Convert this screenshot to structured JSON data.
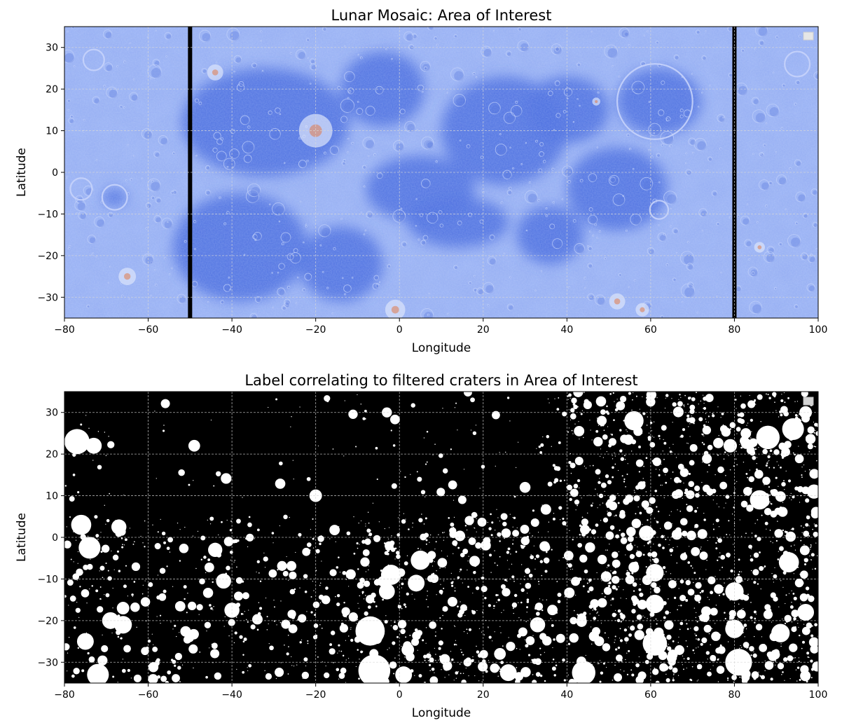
{
  "colors": {
    "mosaic_mare": "#4a6ee0",
    "mosaic_highland": "#93acf2",
    "mosaic_bg": "#6d8cea",
    "stripe": "#000000",
    "grid": "#d8d8d8",
    "label_bg": "#000000",
    "crater": "#ffffff",
    "accent_orange": "#e07a4a"
  },
  "chart_data": [
    {
      "type": "heatmap",
      "title": "Lunar Mosaic: Area of Interest",
      "xlabel": "Longitude",
      "ylabel": "Latitude",
      "xlim": [
        -80,
        100
      ],
      "ylim": [
        -35,
        35
      ],
      "xticks": [
        -80,
        -60,
        -40,
        -20,
        0,
        20,
        40,
        60,
        80,
        100
      ],
      "xtick_labels": [
        "−80",
        "−60",
        "−40",
        "−20",
        "0",
        "20",
        "40",
        "60",
        "80",
        "100"
      ],
      "yticks": [
        30,
        20,
        10,
        0,
        -10,
        -20,
        -30
      ],
      "ytick_labels": [
        "30",
        "20",
        "10",
        "0",
        "−10",
        "−20",
        "−30"
      ],
      "grid": true,
      "legend": "top-right (empty)",
      "colormap": "coolwarm",
      "seam_longitudes": [
        -50,
        80
      ],
      "mare_regions": [
        {
          "lon": -32,
          "lat": 12,
          "r_lon": 20,
          "r_lat": 13
        },
        {
          "lon": -38,
          "lat": -18,
          "r_lon": 16,
          "r_lat": 13
        },
        {
          "lon": -14,
          "lat": -22,
          "r_lon": 10,
          "r_lat": 9
        },
        {
          "lon": -4,
          "lat": 20,
          "r_lon": 10,
          "r_lat": 9
        },
        {
          "lon": 5,
          "lat": -4,
          "r_lon": 13,
          "r_lat": 8
        },
        {
          "lon": 25,
          "lat": 10,
          "r_lon": 15,
          "r_lat": 13
        },
        {
          "lon": 40,
          "lat": 15,
          "r_lon": 10,
          "r_lat": 8
        },
        {
          "lon": 52,
          "lat": -4,
          "r_lon": 12,
          "r_lat": 10
        },
        {
          "lon": 62,
          "lat": 17,
          "r_lon": 10,
          "r_lat": 8
        },
        {
          "lon": 36,
          "lat": -15,
          "r_lon": 8,
          "r_lat": 7
        },
        {
          "lon": 14,
          "lat": -12,
          "r_lon": 12,
          "r_lat": 6
        },
        {
          "lon": -68,
          "lat": -6,
          "r_lon": 3,
          "r_lat": 2
        }
      ]
    },
    {
      "type": "heatmap",
      "title": "Label correlating to filtered craters in Area of Interest",
      "xlabel": "Longitude",
      "ylabel": "Latitude",
      "xlim": [
        -80,
        100
      ],
      "ylim": [
        -35,
        35
      ],
      "xticks": [
        -80,
        -60,
        -40,
        -20,
        0,
        20,
        40,
        60,
        80,
        100
      ],
      "xtick_labels": [
        "−80",
        "−60",
        "−40",
        "−20",
        "0",
        "20",
        "40",
        "60",
        "80",
        "100"
      ],
      "yticks": [
        30,
        20,
        10,
        0,
        -10,
        -20,
        -30
      ],
      "ytick_labels": [
        "30",
        "20",
        "10",
        "0",
        "−10",
        "−20",
        "−30"
      ],
      "grid": true,
      "legend": "top-right (empty)",
      "values": "binary crater mask (white = crater)",
      "large_craters": [
        [
          -77,
          23,
          3.0
        ],
        [
          -73,
          22,
          1.9
        ],
        [
          -76,
          3,
          2.4
        ],
        [
          -74,
          -2.5,
          2.6
        ],
        [
          -67,
          2.5,
          1.8
        ],
        [
          -75,
          -25,
          2.0
        ],
        [
          -72,
          -33,
          2.6
        ],
        [
          -69,
          -20,
          2.0
        ],
        [
          -66,
          -21,
          2.1
        ],
        [
          -66,
          -17,
          1.5
        ],
        [
          -49,
          22,
          1.4
        ],
        [
          -44,
          -3,
          1.7
        ],
        [
          -42,
          -10.5,
          1.8
        ],
        [
          -40,
          -17.5,
          1.8
        ],
        [
          -20,
          10,
          1.5
        ],
        [
          -3,
          30,
          1.2
        ],
        [
          -7,
          -22.5,
          3.5
        ],
        [
          -6,
          -32,
          3.8
        ],
        [
          -2,
          -9,
          2.4
        ],
        [
          -3,
          -13,
          1.9
        ],
        [
          5,
          -5.5,
          2.3
        ],
        [
          4,
          -11,
          2.0
        ],
        [
          2,
          -27,
          1.5
        ],
        [
          1,
          -33,
          2.0
        ],
        [
          15,
          9,
          1.0
        ],
        [
          30,
          12,
          1.3
        ],
        [
          33,
          -21,
          1.8
        ],
        [
          24,
          -28,
          1.4
        ],
        [
          26,
          -32.5,
          2.0
        ],
        [
          44,
          -32.5,
          2.8
        ],
        [
          56,
          28,
          2.3
        ],
        [
          59,
          1,
          1.8
        ],
        [
          61,
          -8.5,
          2.1
        ],
        [
          61,
          -16,
          2.2
        ],
        [
          61,
          -25.5,
          2.9
        ],
        [
          79,
          22,
          1.6
        ],
        [
          86,
          9,
          2.3
        ],
        [
          88,
          24,
          2.8
        ],
        [
          94,
          26,
          2.6
        ],
        [
          80,
          -13,
          2.2
        ],
        [
          80,
          -22,
          2.2
        ],
        [
          81,
          -30,
          3.2
        ],
        [
          93,
          -6,
          2.4
        ],
        [
          91,
          -23,
          2.2
        ],
        [
          97,
          -18,
          2.0
        ],
        [
          99,
          11,
          1.7
        ],
        [
          97,
          30,
          1.5
        ]
      ]
    }
  ]
}
